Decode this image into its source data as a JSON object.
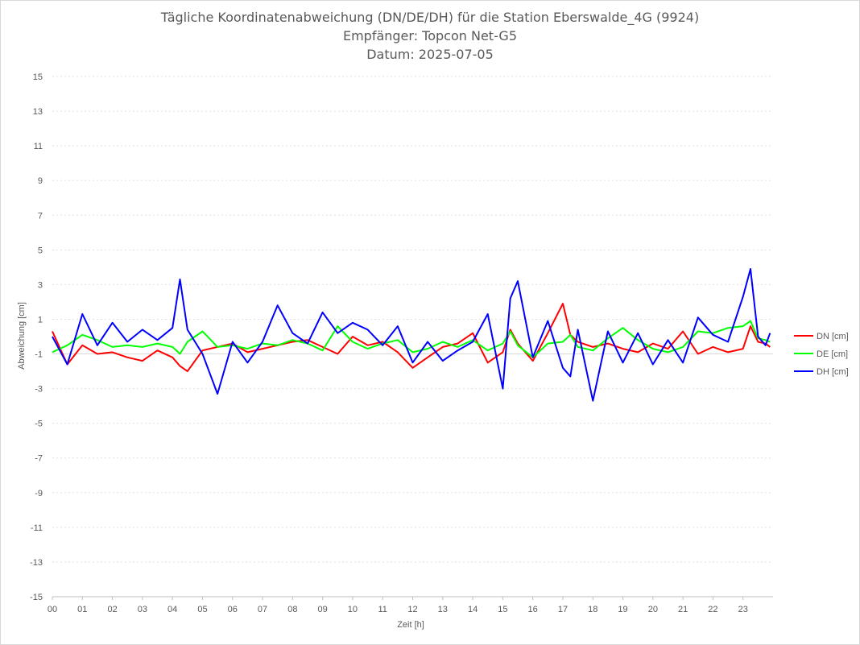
{
  "chart_data": {
    "type": "line",
    "title": "Tägliche Koordinatenabweichung (DN/DE/DH) für die Station Eberswalde_4G (9924)",
    "subtitle": "Empfänger: Topcon Net-G5",
    "subtitle2": "Datum: 2025-07-05",
    "xlabel": "Zeit [h]",
    "ylabel": "Abweichung [cm]",
    "xlim": [
      0,
      24
    ],
    "ylim": [
      -15,
      15
    ],
    "x_ticks": [
      "00",
      "01",
      "02",
      "03",
      "04",
      "05",
      "06",
      "07",
      "08",
      "09",
      "10",
      "11",
      "12",
      "13",
      "14",
      "15",
      "16",
      "17",
      "18",
      "19",
      "20",
      "21",
      "22",
      "23"
    ],
    "y_ticks": [
      "15",
      "13",
      "11",
      "9",
      "7",
      "5",
      "3",
      "1",
      "-1",
      "-3",
      "-5",
      "-7",
      "-9",
      "-11",
      "-13",
      "-15"
    ],
    "grid": true,
    "legend_position": "right",
    "x": [
      0,
      0.5,
      1,
      1.5,
      2,
      2.5,
      3,
      3.5,
      4,
      4.25,
      4.5,
      5,
      5.5,
      6,
      6.5,
      7,
      7.5,
      8,
      8.5,
      9,
      9.5,
      10,
      10.5,
      11,
      11.5,
      12,
      12.5,
      13,
      13.5,
      14,
      14.5,
      15,
      15.25,
      15.5,
      16,
      16.5,
      17,
      17.25,
      17.5,
      18,
      18.5,
      19,
      19.5,
      20,
      20.5,
      21,
      21.5,
      22,
      22.5,
      23,
      23.25,
      23.5,
      23.75,
      23.9
    ],
    "series": [
      {
        "name": "DN [cm]",
        "color": "#ff0000",
        "values": [
          0.3,
          -1.6,
          -0.5,
          -1.0,
          -0.9,
          -1.2,
          -1.4,
          -0.8,
          -1.2,
          -1.7,
          -2.0,
          -0.8,
          -0.6,
          -0.4,
          -0.9,
          -0.7,
          -0.5,
          -0.3,
          -0.2,
          -0.6,
          -1.0,
          0.0,
          -0.5,
          -0.3,
          -0.9,
          -1.8,
          -1.2,
          -0.6,
          -0.4,
          0.2,
          -1.5,
          -0.9,
          0.4,
          -0.4,
          -1.4,
          0.2,
          1.9,
          0.1,
          -0.3,
          -0.6,
          -0.4,
          -0.7,
          -0.9,
          -0.4,
          -0.7,
          0.3,
          -1.0,
          -0.6,
          -0.9,
          -0.7,
          0.6,
          -0.3,
          -0.4,
          -0.6
        ]
      },
      {
        "name": "DE [cm]",
        "color": "#00ff00",
        "values": [
          -0.9,
          -0.5,
          0.1,
          -0.2,
          -0.6,
          -0.5,
          -0.6,
          -0.4,
          -0.6,
          -1.0,
          -0.3,
          0.3,
          -0.6,
          -0.5,
          -0.7,
          -0.4,
          -0.5,
          -0.2,
          -0.4,
          -0.8,
          0.6,
          -0.3,
          -0.7,
          -0.4,
          -0.2,
          -0.9,
          -0.7,
          -0.3,
          -0.6,
          -0.2,
          -0.8,
          -0.4,
          0.3,
          -0.5,
          -1.2,
          -0.4,
          -0.3,
          0.1,
          -0.6,
          -0.8,
          -0.1,
          0.5,
          -0.2,
          -0.7,
          -0.9,
          -0.6,
          0.3,
          0.2,
          0.5,
          0.6,
          0.9,
          -0.1,
          -0.2,
          -0.3
        ]
      },
      {
        "name": "DH [cm]",
        "color": "#0000ff",
        "values": [
          0.0,
          -1.6,
          1.3,
          -0.5,
          0.8,
          -0.3,
          0.4,
          -0.2,
          0.5,
          3.3,
          0.4,
          -1.0,
          -3.3,
          -0.3,
          -1.5,
          -0.3,
          1.8,
          0.2,
          -0.4,
          1.4,
          0.2,
          0.8,
          0.4,
          -0.5,
          0.6,
          -1.5,
          -0.3,
          -1.4,
          -0.8,
          -0.3,
          1.3,
          -3.0,
          2.2,
          3.2,
          -1.2,
          0.9,
          -1.8,
          -2.3,
          0.4,
          -3.7,
          0.3,
          -1.5,
          0.2,
          -1.6,
          -0.2,
          -1.5,
          1.1,
          0.1,
          -0.3,
          2.3,
          3.9,
          0.0,
          -0.5,
          0.2
        ]
      }
    ]
  }
}
